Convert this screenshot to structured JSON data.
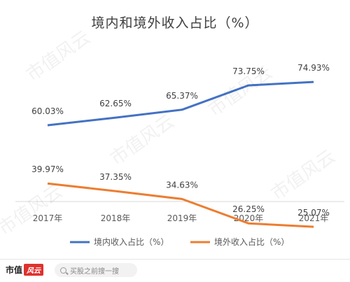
{
  "chart_data": {
    "type": "line",
    "title": "境内和境外收入占比（%）",
    "categories": [
      "2017年",
      "2018年",
      "2019年",
      "2020年",
      "2021年"
    ],
    "series": [
      {
        "name": "境内收入占比（%）",
        "color": "#4472C4",
        "values": [
          60.03,
          62.65,
          65.37,
          73.75,
          74.93
        ],
        "labels": [
          "60.03%",
          "62.65%",
          "65.37%",
          "73.75%",
          "74.93%"
        ]
      },
      {
        "name": "境外收入占比（%）",
        "color": "#ED7D31",
        "values": [
          39.97,
          37.35,
          34.63,
          26.25,
          25.07
        ],
        "labels": [
          "39.97%",
          "37.35%",
          "34.63%",
          "26.25%",
          "25.07%"
        ]
      }
    ],
    "legend_position": "bottom",
    "grid": false
  },
  "watermark": {
    "text": "市值风云"
  },
  "footer": {
    "brand_text": "市值",
    "brand_mark": "风云",
    "search_placeholder": "买股之前搜一搜"
  }
}
